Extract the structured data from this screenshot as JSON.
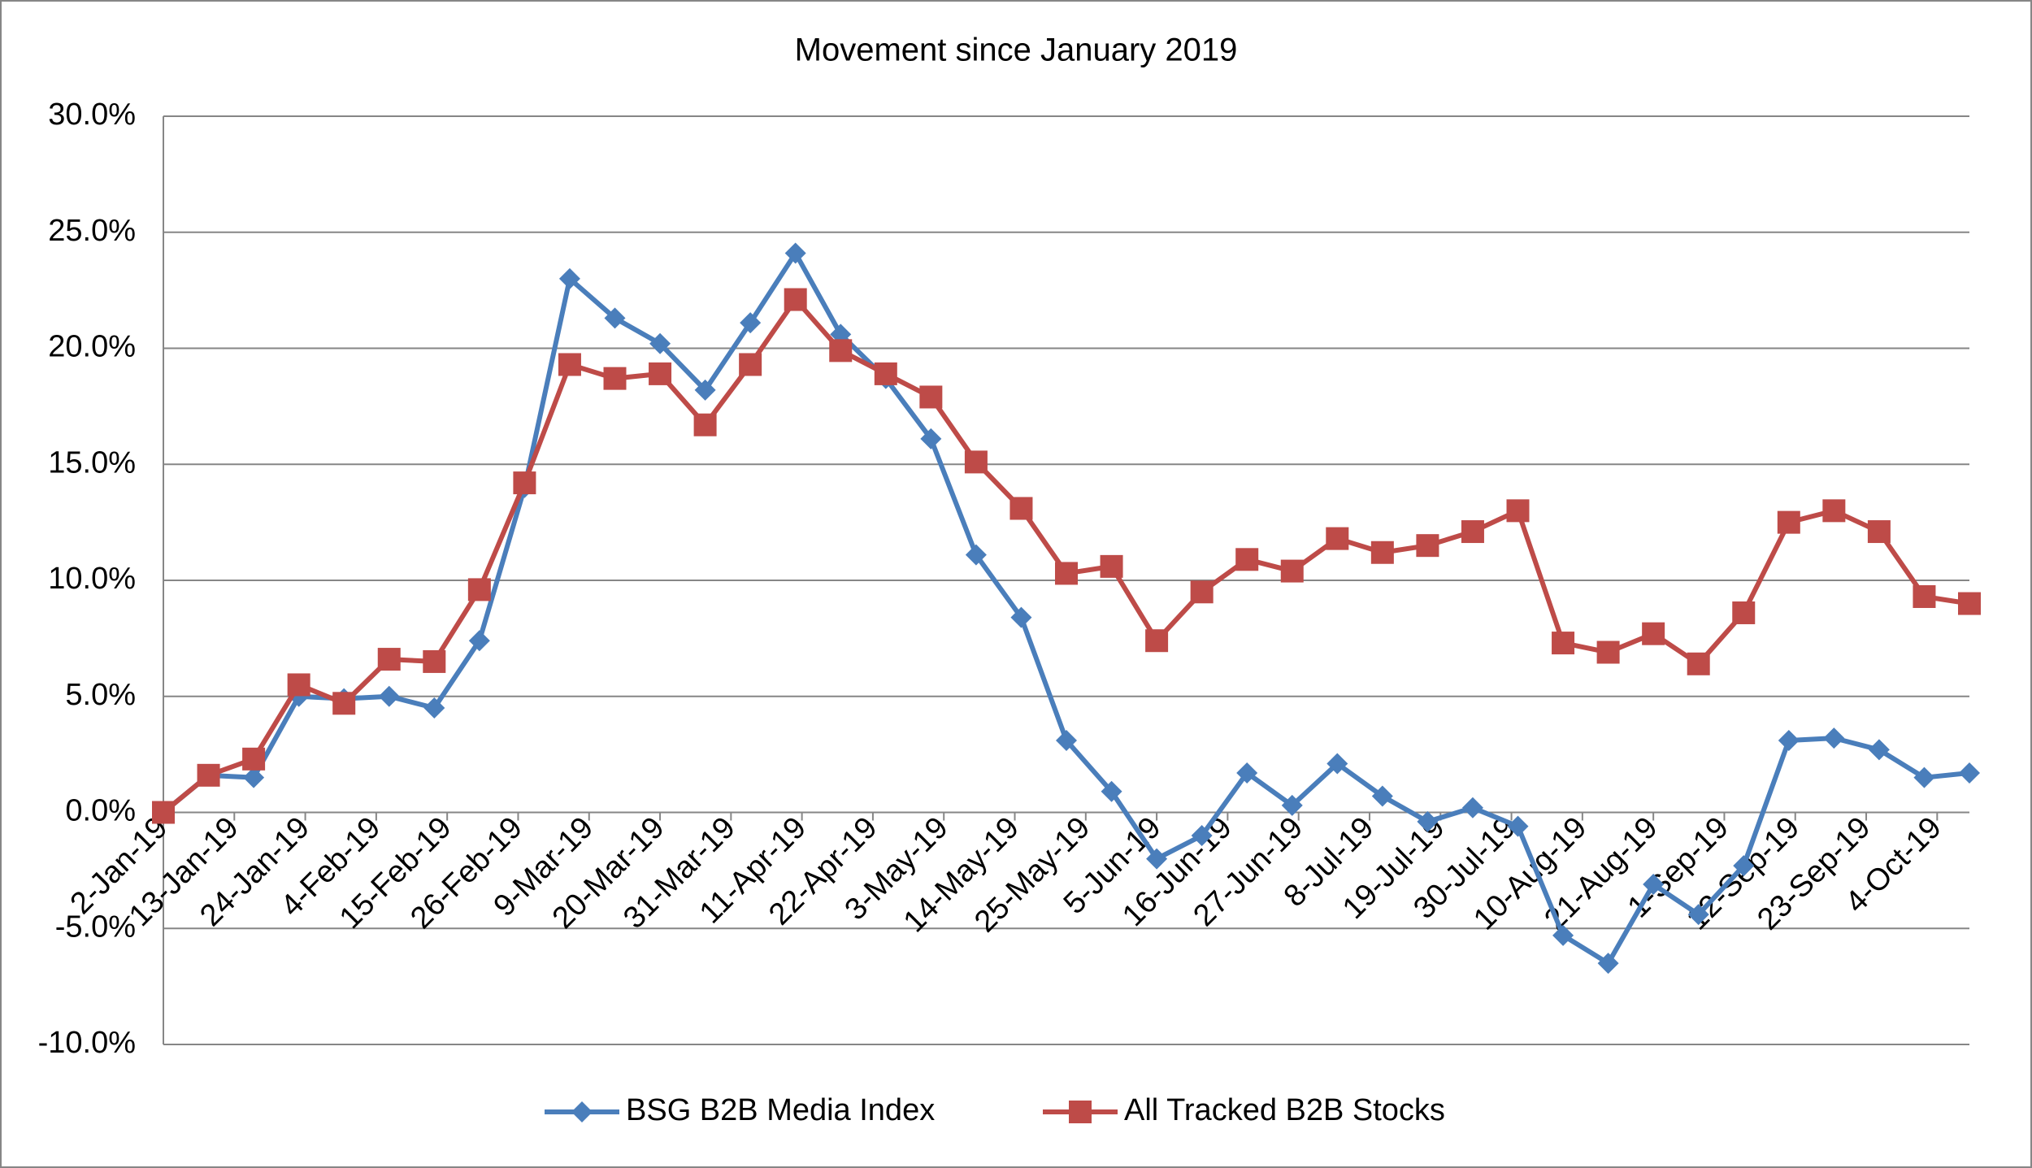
{
  "chart_data": {
    "type": "line",
    "title": "Movement since January 2019",
    "x": [
      "2019-01-02",
      "2019-01-09",
      "2019-01-16",
      "2019-01-23",
      "2019-01-30",
      "2019-02-06",
      "2019-02-13",
      "2019-02-20",
      "2019-02-27",
      "2019-03-06",
      "2019-03-13",
      "2019-03-20",
      "2019-03-27",
      "2019-04-03",
      "2019-04-10",
      "2019-04-17",
      "2019-04-24",
      "2019-05-01",
      "2019-05-08",
      "2019-05-15",
      "2019-05-22",
      "2019-05-29",
      "2019-06-05",
      "2019-06-12",
      "2019-06-19",
      "2019-06-26",
      "2019-07-03",
      "2019-07-10",
      "2019-07-17",
      "2019-07-24",
      "2019-07-31",
      "2019-08-07",
      "2019-08-14",
      "2019-08-21",
      "2019-08-28",
      "2019-09-04",
      "2019-09-11",
      "2019-09-18",
      "2019-09-25",
      "2019-10-02",
      "2019-10-09"
    ],
    "series": [
      {
        "name": "BSG B2B Media Index",
        "color": "#4a7ebb",
        "marker": "diamond",
        "values": [
          0,
          1.6,
          1.5,
          5.0,
          4.9,
          5.0,
          4.5,
          7.4,
          14.0,
          23.0,
          21.3,
          20.2,
          18.2,
          21.1,
          24.1,
          20.6,
          18.7,
          16.1,
          11.1,
          8.4,
          3.1,
          0.9,
          -2.0,
          -1.0,
          1.7,
          0.3,
          2.1,
          0.7,
          -0.4,
          0.2,
          -0.6,
          -5.3,
          -6.5,
          -3.1,
          -4.4,
          -2.3,
          3.1,
          3.2,
          2.7,
          1.5,
          1.7
        ]
      },
      {
        "name": "All Tracked B2B Stocks",
        "color": "#be4b48",
        "marker": "square",
        "values": [
          0,
          1.6,
          2.3,
          5.5,
          4.7,
          6.6,
          6.5,
          9.6,
          14.2,
          19.3,
          18.7,
          18.9,
          16.7,
          19.3,
          22.1,
          19.9,
          18.9,
          17.9,
          15.1,
          13.1,
          10.3,
          10.6,
          7.4,
          9.5,
          10.9,
          10.4,
          11.8,
          11.2,
          11.5,
          12.1,
          13.0,
          7.3,
          6.9,
          7.7,
          6.4,
          8.6,
          12.5,
          13.0,
          12.1,
          9.3,
          9.0
        ]
      }
    ],
    "xlim": [
      "2019-01-02",
      "2019-10-09"
    ],
    "xticks": [
      {
        "value": "2019-01-02",
        "label": "2-Jan-19"
      },
      {
        "value": "2019-01-13",
        "label": "13-Jan-19"
      },
      {
        "value": "2019-01-24",
        "label": "24-Jan-19"
      },
      {
        "value": "2019-02-04",
        "label": "4-Feb-19"
      },
      {
        "value": "2019-02-15",
        "label": "15-Feb-19"
      },
      {
        "value": "2019-02-26",
        "label": "26-Feb-19"
      },
      {
        "value": "2019-03-09",
        "label": "9-Mar-19"
      },
      {
        "value": "2019-03-20",
        "label": "20-Mar-19"
      },
      {
        "value": "2019-03-31",
        "label": "31-Mar-19"
      },
      {
        "value": "2019-04-11",
        "label": "11-Apr-19"
      },
      {
        "value": "2019-04-22",
        "label": "22-Apr-19"
      },
      {
        "value": "2019-05-03",
        "label": "3-May-19"
      },
      {
        "value": "2019-05-14",
        "label": "14-May-19"
      },
      {
        "value": "2019-05-25",
        "label": "25-May-19"
      },
      {
        "value": "2019-06-05",
        "label": "5-Jun-19"
      },
      {
        "value": "2019-06-16",
        "label": "16-Jun-19"
      },
      {
        "value": "2019-06-27",
        "label": "27-Jun-19"
      },
      {
        "value": "2019-07-08",
        "label": "8-Jul-19"
      },
      {
        "value": "2019-07-19",
        "label": "19-Jul-19"
      },
      {
        "value": "2019-07-30",
        "label": "30-Jul-19"
      },
      {
        "value": "2019-08-10",
        "label": "10-Aug-19"
      },
      {
        "value": "2019-08-21",
        "label": "21-Aug-19"
      },
      {
        "value": "2019-09-01",
        "label": "1-Sep-19"
      },
      {
        "value": "2019-09-12",
        "label": "12-Sep-19"
      },
      {
        "value": "2019-09-23",
        "label": "23-Sep-19"
      },
      {
        "value": "2019-10-04",
        "label": "4-Oct-19"
      }
    ],
    "ylim": [
      -10,
      30
    ],
    "yticks": [
      {
        "value": -10,
        "label": "-10.0%"
      },
      {
        "value": -5,
        "label": "-5.0%"
      },
      {
        "value": 0,
        "label": "0.0%"
      },
      {
        "value": 5,
        "label": "5.0%"
      },
      {
        "value": 10,
        "label": "10.0%"
      },
      {
        "value": 15,
        "label": "15.0%"
      },
      {
        "value": 20,
        "label": "20.0%"
      },
      {
        "value": 25,
        "label": "25.0%"
      },
      {
        "value": 30,
        "label": "30.0%"
      }
    ],
    "grid": true,
    "legend": "bottom"
  }
}
